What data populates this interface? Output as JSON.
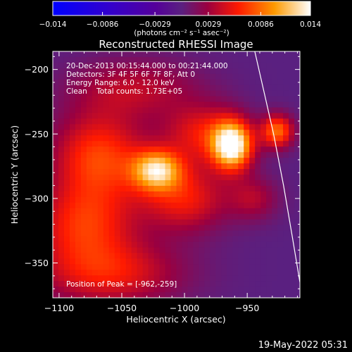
{
  "chart_data": {
    "type": "heatmap",
    "title": "Reconstructed RHESSI Image",
    "xlabel": "Heliocentric X (arcsec)",
    "ylabel": "Heliocentric Y (arcsec)",
    "xlim": [
      -1105,
      -908
    ],
    "ylim": [
      -377,
      -186
    ],
    "x_ticks": [
      -1100,
      -1050,
      -1000,
      -950
    ],
    "x_tick_labels": [
      "−1100",
      "−1050",
      "−1000",
      "−950"
    ],
    "y_ticks": [
      -200,
      -250,
      -300,
      -350
    ],
    "y_tick_labels": [
      "−200",
      "−250",
      "−300",
      "−350"
    ],
    "colorbar": {
      "range": [
        -0.014,
        0.014
      ],
      "ticks": [
        -0.014,
        -0.0086,
        -0.0029,
        0.0029,
        0.0086,
        0.014
      ],
      "tick_labels": [
        "−0.014",
        "−0.0086",
        "−0.0029",
        "0.0029",
        "0.0086",
        "0.014"
      ],
      "unit_label": "(photons cm⁻² s⁻¹ asec⁻²)"
    },
    "sources": [
      {
        "x": -962,
        "y": -259,
        "peak": 0.014,
        "sx": 11,
        "sy": 13
      },
      {
        "x": -1022,
        "y": -278,
        "peak": 0.0105,
        "sx": 14,
        "sy": 11
      },
      {
        "x": -926,
        "y": -248,
        "peak": 0.0085,
        "sx": 9,
        "sy": 9
      },
      {
        "x": -1068,
        "y": -268,
        "peak": 0.0072,
        "sx": 26,
        "sy": 24
      },
      {
        "x": -1080,
        "y": -320,
        "peak": 0.0062,
        "sx": 28,
        "sy": 22
      },
      {
        "x": -1000,
        "y": -300,
        "peak": 0.0058,
        "sx": 24,
        "sy": 18
      },
      {
        "x": -1060,
        "y": -358,
        "peak": 0.0055,
        "sx": 40,
        "sy": 18
      },
      {
        "x": -985,
        "y": -250,
        "peak": 0.0055,
        "sx": 22,
        "sy": 16
      },
      {
        "x": -1040,
        "y": -215,
        "peak": 0.0038,
        "sx": 36,
        "sy": 16
      },
      {
        "x": -945,
        "y": -300,
        "peak": 0.0034,
        "sx": 14,
        "sy": 12
      }
    ],
    "limb": [
      [
        -944,
        -186
      ],
      [
        -936,
        -220
      ],
      [
        -929,
        -250
      ],
      [
        -921,
        -290
      ],
      [
        -914,
        -330
      ],
      [
        -908,
        -365
      ]
    ],
    "annotations": [
      "20-Dec-2013 00:15:44.000 to 00:21:44.000",
      "Detectors: 3F 4F 5F 6F 7F 8F, Att 0",
      "Energy Range: 6.0 - 12.0 keV",
      "Clean    Total counts: 1.73E+05"
    ],
    "peak_position": "Position of Peak = [-962,-259]",
    "grid": false
  },
  "footer": {
    "timestamp": "19-May-2022 05:31"
  }
}
